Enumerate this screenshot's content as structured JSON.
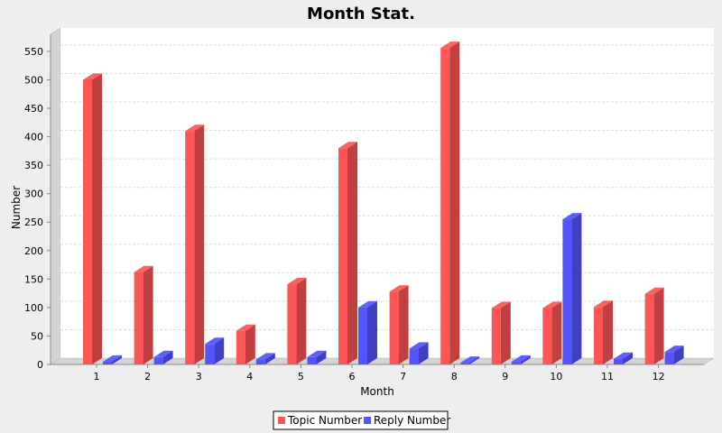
{
  "chart_data": {
    "type": "bar",
    "title": "Month Stat.",
    "xlabel": "Month",
    "ylabel": "Number",
    "categories": [
      "1",
      "2",
      "3",
      "4",
      "5",
      "6",
      "7",
      "8",
      "9",
      "10",
      "11",
      "12"
    ],
    "series": [
      {
        "name": "Topic Number",
        "color": "#ff5555",
        "values": [
          500,
          162,
          410,
          59,
          141,
          380,
          128,
          556,
          99,
          99,
          101,
          124
        ]
      },
      {
        "name": "Reply Number",
        "color": "#5555ff",
        "values": [
          5,
          13,
          36,
          9,
          13,
          100,
          28,
          3,
          5,
          255,
          10,
          22
        ]
      }
    ],
    "ylim": [
      0,
      580
    ],
    "yticks": [
      0,
      50,
      100,
      150,
      200,
      250,
      300,
      350,
      400,
      450,
      500,
      550
    ],
    "grid": true,
    "legend_position": "bottom"
  }
}
